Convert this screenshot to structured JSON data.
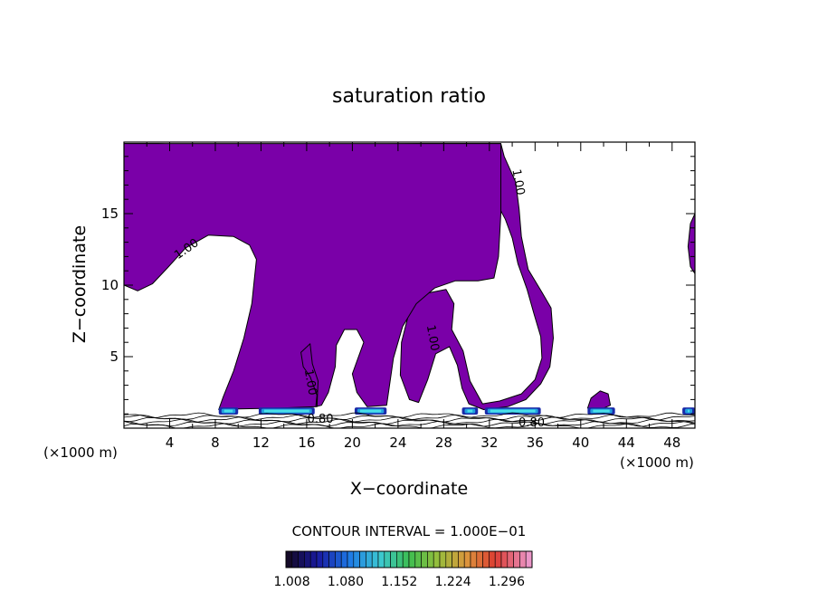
{
  "chart_data": {
    "type": "heatmap",
    "title": "saturation ratio",
    "xlabel": "X−coordinate",
    "ylabel": "Z−coordinate",
    "x_unit_label_left": "(×1000 m)",
    "x_unit_label_right": "(×1000 m)",
    "xlim": [
      0,
      50
    ],
    "ylim": [
      0,
      20
    ],
    "x_ticks": [
      4,
      8,
      12,
      16,
      20,
      24,
      28,
      32,
      36,
      40,
      44,
      48
    ],
    "y_ticks": [
      5,
      10,
      15
    ],
    "contour_interval_text": "CONTOUR INTERVAL = 1.000E−01",
    "contour_labels": [
      {
        "text": "1.00",
        "x": 5.5,
        "y": 12.5
      },
      {
        "text": "1.00",
        "x": 34.5,
        "y": 17.2
      },
      {
        "text": "1.00",
        "x": 27.0,
        "y": 6.3
      },
      {
        "text": "1.00",
        "x": 16.3,
        "y": 3.2
      },
      {
        "text": "0.80",
        "x": 17.2,
        "y": 0.6
      },
      {
        "text": "0.80",
        "x": 35.7,
        "y": 0.35
      }
    ],
    "colorbar": {
      "tick_labels": [
        "1.008",
        "1.080",
        "1.152",
        "1.224",
        "1.296"
      ],
      "range": [
        1.0,
        1.33
      ]
    },
    "fill_color": "#7a00a8",
    "ice_band_colors": [
      "#1a2aa8",
      "#22a0e0",
      "#4ae0e8"
    ],
    "regions": [
      {
        "name": "main",
        "points": [
          [
            0,
            19.9
          ],
          [
            3,
            19.9
          ],
          [
            8,
            19.7
          ],
          [
            12,
            19.75
          ],
          [
            16,
            19.85
          ],
          [
            20,
            19.85
          ],
          [
            26,
            19.9
          ],
          [
            33,
            19.9
          ],
          [
            33.3,
            19
          ],
          [
            34.3,
            17.2
          ],
          [
            34.6,
            15.3
          ],
          [
            34.8,
            13.4
          ],
          [
            35.4,
            11.1
          ],
          [
            36.6,
            9.5
          ],
          [
            37.4,
            8.4
          ],
          [
            37.6,
            6.3
          ],
          [
            37.3,
            4.3
          ],
          [
            36.5,
            3.1
          ],
          [
            35.2,
            2.0
          ],
          [
            33.6,
            1.5
          ],
          [
            31.5,
            1.3
          ],
          [
            30.2,
            1.7
          ],
          [
            29.6,
            2.8
          ],
          [
            29.2,
            4.4
          ],
          [
            28.5,
            5.7
          ],
          [
            27.3,
            5.2
          ],
          [
            26.6,
            3.4
          ],
          [
            25.8,
            1.8
          ],
          [
            25.0,
            2.0
          ],
          [
            24.2,
            3.7
          ],
          [
            24.3,
            6.0
          ],
          [
            25.0,
            8.2
          ],
          [
            26.3,
            9.4
          ],
          [
            28.2,
            9.7
          ],
          [
            28.9,
            8.7
          ],
          [
            28.7,
            6.9
          ],
          [
            29.7,
            5.4
          ],
          [
            30.3,
            3.3
          ],
          [
            31.4,
            1.7
          ],
          [
            32.9,
            1.9
          ],
          [
            34.8,
            2.4
          ],
          [
            36.0,
            3.4
          ],
          [
            36.6,
            4.9
          ],
          [
            36.5,
            6.4
          ],
          [
            35.9,
            8.0
          ],
          [
            35.3,
            9.7
          ],
          [
            34.5,
            11.5
          ],
          [
            34.0,
            13.3
          ],
          [
            33.4,
            14.6
          ],
          [
            32.6,
            15.8
          ],
          [
            32.0,
            17.1
          ],
          [
            31.6,
            18.7
          ],
          [
            30,
            18.9
          ],
          [
            27,
            19.4
          ],
          [
            23,
            19.4
          ],
          [
            19.5,
            19.1
          ],
          [
            15,
            18.7
          ],
          [
            12,
            18.8
          ],
          [
            9,
            18.8
          ],
          [
            6,
            18.5
          ],
          [
            3.5,
            18.3
          ],
          [
            2,
            18.7
          ],
          [
            0,
            18.5
          ]
        ]
      },
      {
        "name": "main-body",
        "points": [
          [
            0,
            19.9
          ],
          [
            33,
            19.9
          ],
          [
            33,
            15
          ],
          [
            32.8,
            12
          ],
          [
            32.4,
            10.5
          ],
          [
            31,
            10.3
          ],
          [
            29,
            10.3
          ],
          [
            27.2,
            9.8
          ],
          [
            25.6,
            8.7
          ],
          [
            24.4,
            7.1
          ],
          [
            23.6,
            4.9
          ],
          [
            23.2,
            2.7
          ],
          [
            23.0,
            1.6
          ],
          [
            21.3,
            1.5
          ],
          [
            20.4,
            2.5
          ],
          [
            20.0,
            3.8
          ],
          [
            20.5,
            4.9
          ],
          [
            21.0,
            6.0
          ],
          [
            20.4,
            6.9
          ],
          [
            19.3,
            6.9
          ],
          [
            18.6,
            5.8
          ],
          [
            18.5,
            4.3
          ],
          [
            17.9,
            2.5
          ],
          [
            17.3,
            1.6
          ],
          [
            16.8,
            1.5
          ],
          [
            16.9,
            2.3
          ],
          [
            16.3,
            3.6
          ],
          [
            15.7,
            4.3
          ],
          [
            15.5,
            5.3
          ],
          [
            16.3,
            5.9
          ],
          [
            16.5,
            4.5
          ],
          [
            17.0,
            3.3
          ],
          [
            16.9,
            1.5
          ],
          [
            13.6,
            1.4
          ],
          [
            10,
            1.35
          ],
          [
            8.3,
            1.3
          ],
          [
            8.7,
            2.2
          ],
          [
            9.6,
            4.0
          ],
          [
            10.5,
            6.3
          ],
          [
            11.2,
            8.7
          ],
          [
            11.4,
            10.3
          ],
          [
            11.6,
            11.8
          ],
          [
            11.0,
            12.8
          ],
          [
            9.6,
            13.4
          ],
          [
            7.4,
            13.5
          ],
          [
            5.4,
            12.6
          ],
          [
            3.8,
            11.2
          ],
          [
            2.5,
            10.1
          ],
          [
            1.2,
            9.6
          ],
          [
            0,
            10.0
          ]
        ]
      },
      {
        "name": "right-edge",
        "points": [
          [
            50,
            15
          ],
          [
            49.6,
            14.3
          ],
          [
            49.4,
            12.7
          ],
          [
            49.6,
            11.3
          ],
          [
            50,
            10.8
          ]
        ]
      },
      {
        "name": "patch-41",
        "points": [
          [
            40.6,
            1.4
          ],
          [
            40.9,
            2.1
          ],
          [
            41.7,
            2.6
          ],
          [
            42.4,
            2.4
          ],
          [
            42.6,
            1.6
          ],
          [
            42.0,
            1.4
          ]
        ]
      }
    ],
    "ice_bands": [
      {
        "x": [
          8.3,
          10.0
        ]
      },
      {
        "x": [
          11.8,
          16.7
        ]
      },
      {
        "x": [
          20.2,
          23.0
        ]
      },
      {
        "x": [
          29.6,
          31.0
        ]
      },
      {
        "x": [
          31.6,
          36.5
        ]
      },
      {
        "x": [
          40.6,
          43.0
        ]
      },
      {
        "x": [
          48.9,
          50.0
        ]
      }
    ],
    "grid": false,
    "legend": "bottom"
  }
}
